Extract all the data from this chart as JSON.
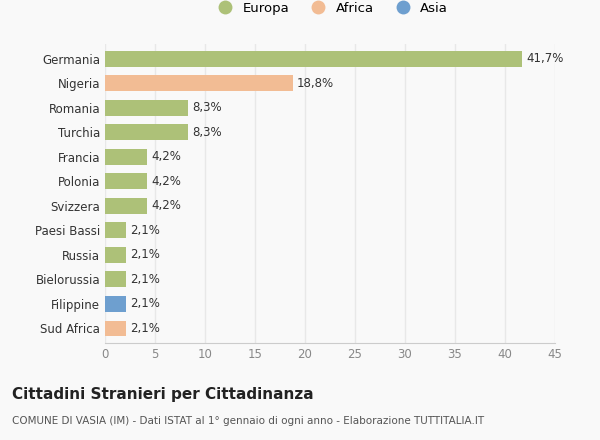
{
  "categories": [
    "Germania",
    "Nigeria",
    "Romania",
    "Turchia",
    "Francia",
    "Polonia",
    "Svizzera",
    "Paesi Bassi",
    "Russia",
    "Bielorussia",
    "Filippine",
    "Sud Africa"
  ],
  "values": [
    41.7,
    18.8,
    8.3,
    8.3,
    4.2,
    4.2,
    4.2,
    2.1,
    2.1,
    2.1,
    2.1,
    2.1
  ],
  "labels": [
    "41,7%",
    "18,8%",
    "8,3%",
    "8,3%",
    "4,2%",
    "4,2%",
    "4,2%",
    "2,1%",
    "2,1%",
    "2,1%",
    "2,1%",
    "2,1%"
  ],
  "continents": [
    "Europa",
    "Africa",
    "Europa",
    "Europa",
    "Europa",
    "Europa",
    "Europa",
    "Europa",
    "Europa",
    "Europa",
    "Asia",
    "Africa"
  ],
  "colors": {
    "Europa": "#adc178",
    "Africa": "#f2bc94",
    "Asia": "#6e9fcf"
  },
  "xlim": [
    0,
    45
  ],
  "xticks": [
    0,
    5,
    10,
    15,
    20,
    25,
    30,
    35,
    40,
    45
  ],
  "title": "Cittadini Stranieri per Cittadinanza",
  "subtitle": "COMUNE DI VASIA (IM) - Dati ISTAT al 1° gennaio di ogni anno - Elaborazione TUTTITALIA.IT",
  "background_color": "#f9f9f9",
  "grid_color": "#e8e8e8",
  "bar_height": 0.65,
  "title_fontsize": 11,
  "subtitle_fontsize": 7.5,
  "tick_fontsize": 8.5,
  "label_fontsize": 8.5,
  "legend_fontsize": 9.5
}
